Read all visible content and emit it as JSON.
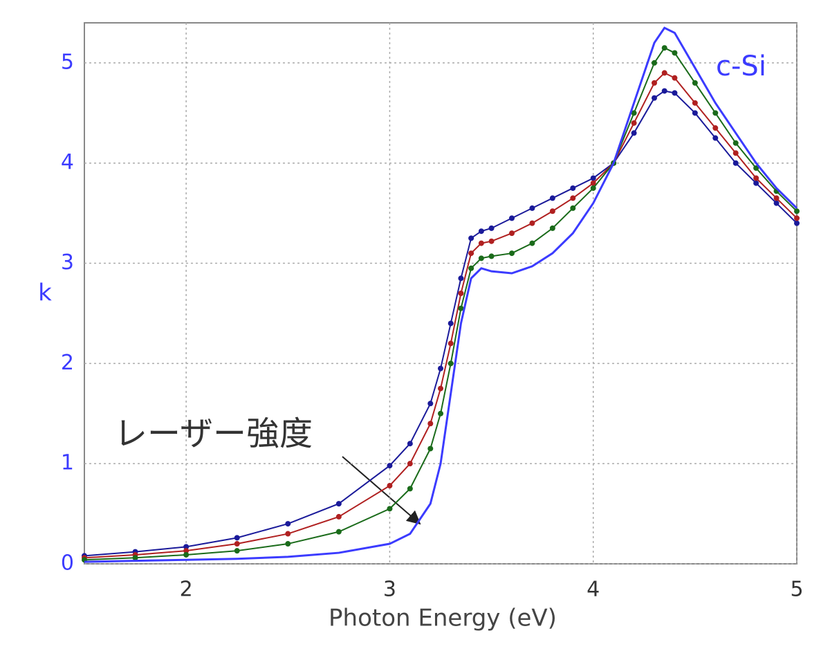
{
  "chart_data": {
    "type": "line",
    "x_label": "Photon Energy (eV)",
    "y_label": "k",
    "annotation": "レーザー強度",
    "x": [
      1.5,
      1.75,
      2,
      2.25,
      2.5,
      2.75,
      3,
      3.1,
      3.2,
      3.25,
      3.3,
      3.35,
      3.4,
      3.45,
      3.5,
      3.6,
      3.7,
      3.8,
      3.9,
      4,
      4.1,
      4.2,
      4.3,
      4.35,
      4.4,
      4.5,
      4.6,
      4.7,
      4.8,
      4.9,
      5
    ],
    "series": [
      {
        "name": "c-Si",
        "color": "#3b3bff",
        "markers": false,
        "values": [
          0.02,
          0.03,
          0.04,
          0.05,
          0.07,
          0.11,
          0.2,
          0.3,
          0.6,
          1.0,
          1.7,
          2.4,
          2.85,
          2.95,
          2.92,
          2.9,
          2.97,
          3.1,
          3.3,
          3.6,
          4.0,
          4.6,
          5.2,
          5.35,
          5.3,
          4.95,
          4.6,
          4.3,
          4.0,
          3.75,
          3.55
        ]
      },
      {
        "color": "#1a6b1a",
        "markers": true,
        "values": [
          0.04,
          0.06,
          0.09,
          0.13,
          0.2,
          0.32,
          0.55,
          0.75,
          1.15,
          1.5,
          2.0,
          2.55,
          2.95,
          3.05,
          3.07,
          3.1,
          3.2,
          3.35,
          3.55,
          3.75,
          4.0,
          4.5,
          5.0,
          5.15,
          5.1,
          4.8,
          4.5,
          4.2,
          3.95,
          3.72,
          3.52
        ]
      },
      {
        "color": "#b02020",
        "markers": true,
        "values": [
          0.06,
          0.09,
          0.13,
          0.2,
          0.3,
          0.47,
          0.78,
          1.0,
          1.4,
          1.75,
          2.2,
          2.7,
          3.1,
          3.2,
          3.22,
          3.3,
          3.4,
          3.52,
          3.65,
          3.8,
          4.0,
          4.4,
          4.8,
          4.9,
          4.85,
          4.6,
          4.35,
          4.1,
          3.85,
          3.65,
          3.45
        ]
      },
      {
        "color": "#1a1a9a",
        "markers": true,
        "values": [
          0.08,
          0.12,
          0.17,
          0.26,
          0.4,
          0.6,
          0.98,
          1.2,
          1.6,
          1.95,
          2.4,
          2.85,
          3.25,
          3.32,
          3.35,
          3.45,
          3.55,
          3.65,
          3.75,
          3.85,
          4.0,
          4.3,
          4.65,
          4.72,
          4.7,
          4.5,
          4.25,
          4.0,
          3.8,
          3.6,
          3.4
        ]
      }
    ],
    "xlim": [
      1.5,
      5
    ],
    "xticks": [
      2,
      3,
      4,
      5
    ],
    "ylim": [
      0,
      5.4
    ],
    "yticks": [
      0,
      1,
      2,
      3,
      4,
      5
    ],
    "grid": true
  }
}
